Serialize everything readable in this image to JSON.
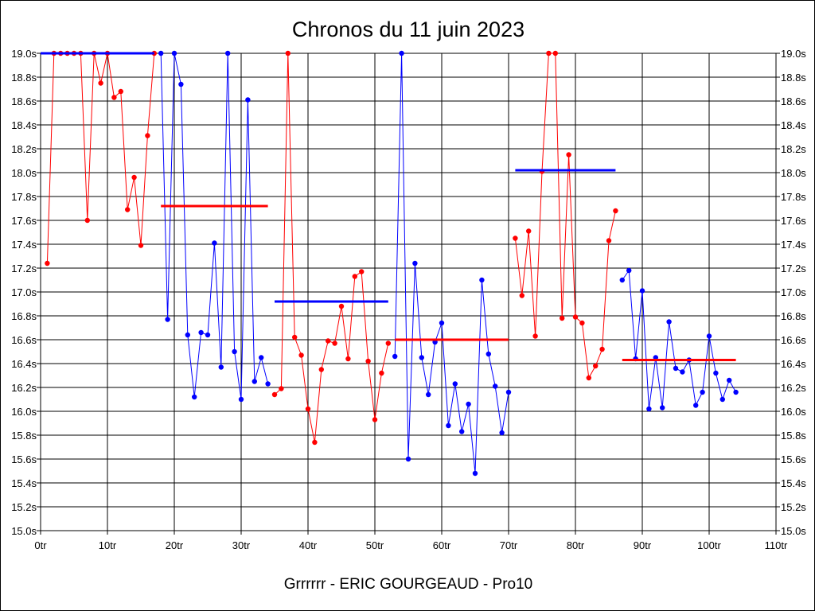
{
  "chart_data": {
    "type": "line",
    "title": "Chronos du 11 juin 2023",
    "xlabel": "Grrrrrr - ERIC GOURGEAUD - Pro10",
    "ylabel": "",
    "xlim": [
      0,
      110
    ],
    "ylim": [
      15.0,
      19.0
    ],
    "grid": true,
    "x_ticks": [
      {
        "value": 0,
        "label": "0tr"
      },
      {
        "value": 10,
        "label": "10tr"
      },
      {
        "value": 20,
        "label": "20tr"
      },
      {
        "value": 30,
        "label": "30tr"
      },
      {
        "value": 40,
        "label": "40tr"
      },
      {
        "value": 50,
        "label": "50tr"
      },
      {
        "value": 60,
        "label": "60tr"
      },
      {
        "value": 70,
        "label": "70tr"
      },
      {
        "value": 80,
        "label": "80tr"
      },
      {
        "value": 90,
        "label": "90tr"
      },
      {
        "value": 100,
        "label": "100tr"
      },
      {
        "value": 110,
        "label": "110tr"
      }
    ],
    "y_ticks": [
      {
        "value": 19.0,
        "label": "19.0s"
      },
      {
        "value": 18.8,
        "label": "18.8s"
      },
      {
        "value": 18.6,
        "label": "18.6s"
      },
      {
        "value": 18.4,
        "label": "18.4s"
      },
      {
        "value": 18.2,
        "label": "18.2s"
      },
      {
        "value": 18.0,
        "label": "18.0s"
      },
      {
        "value": 17.8,
        "label": "17.8s"
      },
      {
        "value": 17.6,
        "label": "17.6s"
      },
      {
        "value": 17.4,
        "label": "17.4s"
      },
      {
        "value": 17.2,
        "label": "17.2s"
      },
      {
        "value": 17.0,
        "label": "17.0s"
      },
      {
        "value": 16.8,
        "label": "16.8s"
      },
      {
        "value": 16.6,
        "label": "16.6s"
      },
      {
        "value": 16.4,
        "label": "16.4s"
      },
      {
        "value": 16.2,
        "label": "16.2s"
      },
      {
        "value": 16.0,
        "label": "16.0s"
      },
      {
        "value": 15.8,
        "label": "15.8s"
      },
      {
        "value": 15.6,
        "label": "15.6s"
      },
      {
        "value": 15.4,
        "label": "15.4s"
      },
      {
        "value": 15.2,
        "label": "15.2s"
      },
      {
        "value": 15.0,
        "label": "15.0s"
      }
    ],
    "series": [
      {
        "color": "#ff0000",
        "points": [
          [
            1,
            17.24
          ],
          [
            2,
            19.0
          ],
          [
            3,
            19.0
          ],
          [
            4,
            19.0
          ],
          [
            5,
            19.0
          ],
          [
            6,
            19.0
          ],
          [
            7,
            17.6
          ],
          [
            8,
            19.0
          ],
          [
            9,
            18.75
          ],
          [
            10,
            19.0
          ],
          [
            11,
            18.63
          ],
          [
            12,
            18.68
          ],
          [
            13,
            17.69
          ],
          [
            14,
            17.96
          ],
          [
            15,
            17.39
          ],
          [
            16,
            18.31
          ],
          [
            17,
            19.0
          ]
        ],
        "mean": {
          "from": 18,
          "to": 34,
          "value": 17.72
        }
      },
      {
        "color": "#0000ff",
        "points": [
          [
            18,
            19.0
          ],
          [
            19,
            16.77
          ],
          [
            20,
            19.0
          ],
          [
            21,
            18.74
          ],
          [
            22,
            16.64
          ],
          [
            23,
            16.12
          ],
          [
            24,
            16.66
          ],
          [
            25,
            16.64
          ],
          [
            26,
            17.41
          ],
          [
            27,
            16.37
          ],
          [
            28,
            19.0
          ],
          [
            29,
            16.5
          ],
          [
            30,
            16.1
          ],
          [
            31,
            18.61
          ],
          [
            32,
            16.25
          ],
          [
            33,
            16.45
          ],
          [
            34,
            16.23
          ]
        ],
        "mean": {
          "from": 0,
          "to": 17,
          "value": 19.0
        }
      },
      {
        "color": "#ff0000",
        "points": [
          [
            35,
            16.14
          ],
          [
            36,
            16.19
          ],
          [
            37,
            19.0
          ],
          [
            38,
            16.62
          ],
          [
            39,
            16.47
          ],
          [
            40,
            16.02
          ],
          [
            41,
            15.74
          ],
          [
            42,
            16.35
          ],
          [
            43,
            16.59
          ],
          [
            44,
            16.57
          ],
          [
            45,
            16.88
          ],
          [
            46,
            16.44
          ],
          [
            47,
            17.13
          ],
          [
            48,
            17.17
          ],
          [
            49,
            16.42
          ],
          [
            50,
            15.93
          ],
          [
            51,
            16.32
          ],
          [
            52,
            16.57
          ]
        ],
        "mean": {
          "from": 53,
          "to": 70,
          "value": 16.6
        }
      },
      {
        "color": "#0000ff",
        "points": [
          [
            53,
            16.46
          ],
          [
            54,
            19.0
          ],
          [
            55,
            15.6
          ],
          [
            56,
            17.24
          ],
          [
            57,
            16.45
          ],
          [
            58,
            16.14
          ],
          [
            59,
            16.58
          ],
          [
            60,
            16.74
          ],
          [
            61,
            15.88
          ],
          [
            62,
            16.23
          ],
          [
            63,
            15.83
          ],
          [
            64,
            16.06
          ],
          [
            65,
            15.48
          ],
          [
            66,
            17.1
          ],
          [
            67,
            16.48
          ],
          [
            68,
            16.21
          ],
          [
            69,
            15.82
          ],
          [
            70,
            16.16
          ]
        ],
        "mean": {
          "from": 35,
          "to": 52,
          "value": 16.92
        }
      },
      {
        "color": "#ff0000",
        "points": [
          [
            71,
            17.45
          ],
          [
            72,
            16.97
          ],
          [
            73,
            17.51
          ],
          [
            74,
            16.63
          ],
          [
            75,
            18.01
          ],
          [
            76,
            19.0
          ],
          [
            77,
            19.0
          ],
          [
            78,
            16.78
          ],
          [
            79,
            18.15
          ],
          [
            80,
            16.79
          ],
          [
            81,
            16.74
          ],
          [
            82,
            16.28
          ],
          [
            83,
            16.38
          ],
          [
            84,
            16.52
          ],
          [
            85,
            17.43
          ],
          [
            86,
            17.68
          ]
        ],
        "mean": {
          "from": 87,
          "to": 104,
          "value": 16.43
        }
      },
      {
        "color": "#0000ff",
        "points": [
          [
            87,
            17.1
          ],
          [
            88,
            17.18
          ],
          [
            89,
            16.44
          ],
          [
            90,
            17.01
          ],
          [
            91,
            16.02
          ],
          [
            92,
            16.45
          ],
          [
            93,
            16.03
          ],
          [
            94,
            16.75
          ],
          [
            95,
            16.36
          ],
          [
            96,
            16.33
          ],
          [
            97,
            16.43
          ],
          [
            98,
            16.05
          ],
          [
            99,
            16.16
          ],
          [
            100,
            16.63
          ],
          [
            101,
            16.32
          ],
          [
            102,
            16.1
          ],
          [
            103,
            16.26
          ],
          [
            104,
            16.16
          ]
        ],
        "mean": {
          "from": 71,
          "to": 86,
          "value": 18.02
        }
      }
    ]
  }
}
